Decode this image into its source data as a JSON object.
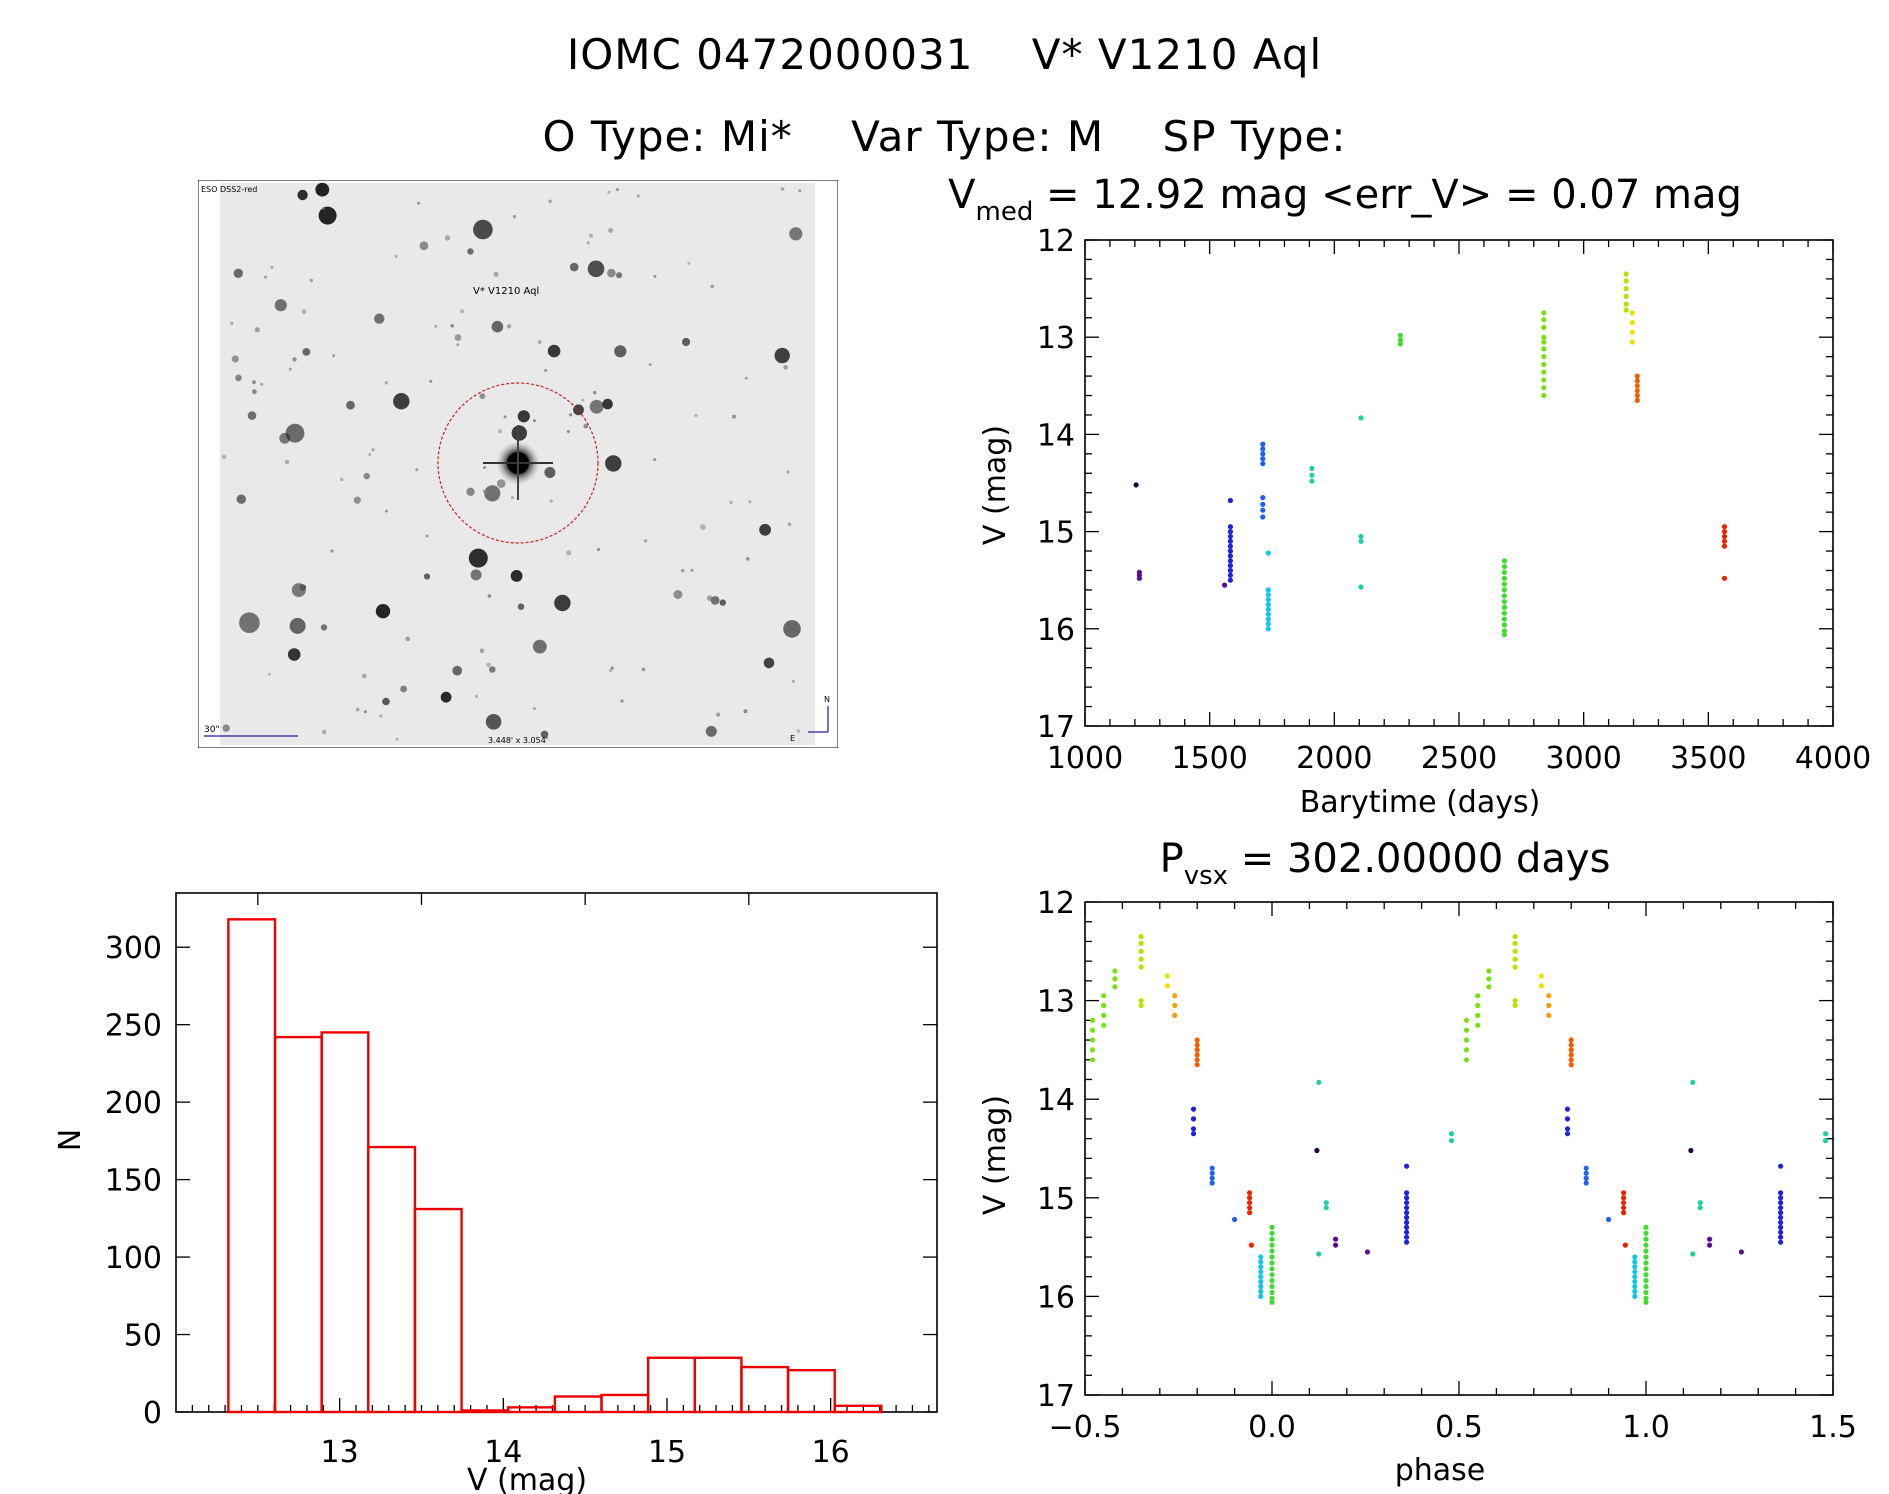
{
  "header": {
    "id_label": "IOMC 0472000031",
    "name_label": "V* V1210 Aql",
    "otype": "O Type: Mi*",
    "vartype": "Var Type: M",
    "sptype": "SP Type:"
  },
  "image": {
    "survey_label": "ESO DSS2-red",
    "target_label": "V* V1210 Aql",
    "scale_label": "30\"",
    "fov_label": "3.448' x 3.054'",
    "north_label": "N",
    "east_label": "E"
  },
  "colors": {
    "histogram": "#ee0000",
    "circle": "#cc2222",
    "overlay_text": "#1a1a99",
    "season_palette": [
      "#220033",
      "#5a0f8f",
      "#2020dd",
      "#2060ee",
      "#10c8e8",
      "#20d0a0",
      "#40dd30",
      "#7ae010",
      "#b4e400",
      "#f0e000",
      "#f0a000",
      "#f06000",
      "#ee2200"
    ]
  },
  "chart_data": [
    {
      "id": "light_curve",
      "type": "scatter",
      "title": "V_med = 12.92 mag <err_V> = 0.07 mag",
      "title_parts": {
        "main": "V",
        "sub": "med",
        "rest": " = 12.92 mag <err_V> = 0.07 mag"
      },
      "xlabel": "Barytime (days)",
      "ylabel": "V (mag)",
      "xlim": [
        1000,
        4000
      ],
      "ylim": [
        17,
        12
      ],
      "y_inverted": true,
      "xticks": [
        1000,
        1500,
        2000,
        2500,
        3000,
        3500,
        4000
      ],
      "yticks": [
        12,
        13,
        14,
        15,
        16,
        17
      ],
      "groups": [
        {
          "x": 1205,
          "y": [
            14.52
          ],
          "color": 0
        },
        {
          "x": 1218,
          "y": [
            15.42,
            15.45,
            15.48
          ],
          "color": 1
        },
        {
          "x": 1560,
          "y": [
            15.55
          ],
          "color": 1
        },
        {
          "x": 1583,
          "y": [
            14.95,
            15.0,
            15.05,
            15.1,
            15.15,
            15.2,
            15.25,
            15.3,
            15.35,
            15.4,
            15.45,
            15.5,
            14.68
          ],
          "color": 2
        },
        {
          "x": 1713,
          "y": [
            14.1,
            14.15,
            14.2,
            14.25,
            14.3,
            14.65,
            14.72,
            14.78,
            14.85
          ],
          "color": 3
        },
        {
          "x": 1735,
          "y": [
            15.22,
            15.6,
            15.65,
            15.7,
            15.75,
            15.8,
            15.85,
            15.9,
            15.95,
            16.0
          ],
          "color": 4
        },
        {
          "x": 1910,
          "y": [
            14.35,
            14.42,
            14.48
          ],
          "color": 5
        },
        {
          "x": 2107,
          "y": [
            13.83,
            15.05,
            15.1,
            15.57
          ],
          "color": 5
        },
        {
          "x": 2265,
          "y": [
            12.98,
            13.03,
            13.07
          ],
          "color": 6
        },
        {
          "x": 2682,
          "y": [
            15.3,
            15.36,
            15.42,
            15.48,
            15.54,
            15.6,
            15.66,
            15.72,
            15.78,
            15.84,
            15.9,
            15.96,
            16.02,
            16.06
          ],
          "color": 6
        },
        {
          "x": 2840,
          "y": [
            12.75,
            12.82,
            12.9,
            13.0,
            13.05,
            13.12,
            13.2,
            13.28,
            13.36,
            13.44,
            13.52,
            13.6
          ],
          "color": 7
        },
        {
          "x": 3170,
          "y": [
            12.35,
            12.42,
            12.5,
            12.58,
            12.66,
            12.72
          ],
          "color": 8
        },
        {
          "x": 3195,
          "y": [
            12.75,
            12.85,
            12.95,
            13.05
          ],
          "color": 9
        },
        {
          "x": 3215,
          "y": [
            13.4,
            13.45,
            13.5,
            13.55,
            13.6,
            13.65
          ],
          "color": 11
        },
        {
          "x": 3565,
          "y": [
            14.95,
            15.0,
            15.05,
            15.1,
            15.15,
            15.48
          ],
          "color": 12
        }
      ]
    },
    {
      "id": "histogram",
      "type": "bar",
      "xlabel": "V (mag)",
      "ylabel": "N",
      "xlim": [
        12.0,
        16.65
      ],
      "ylim": [
        0,
        335
      ],
      "xticks": [
        13,
        14,
        15,
        16
      ],
      "yticks": [
        0,
        50,
        100,
        150,
        200,
        250,
        300
      ],
      "bin_edges": [
        12.32,
        12.605,
        12.89,
        13.175,
        13.46,
        13.745,
        14.03,
        14.315,
        14.6,
        14.885,
        15.17,
        15.455,
        15.74,
        16.025,
        16.31
      ],
      "values": [
        318,
        242,
        245,
        171,
        131,
        1,
        3,
        10,
        11,
        35,
        35,
        29,
        27,
        4
      ]
    },
    {
      "id": "phase_curve",
      "type": "scatter",
      "title": "P_vsx = 302.00000 days",
      "title_parts": {
        "main": "P",
        "sub": "vsx",
        "rest": " = 302.00000 days"
      },
      "xlabel": "phase",
      "ylabel": "V (mag)",
      "xlim": [
        -0.5,
        1.5
      ],
      "ylim": [
        17,
        12
      ],
      "y_inverted": true,
      "xticks": [
        -0.5,
        0.0,
        0.5,
        1.0,
        1.5
      ],
      "xtick_labels": [
        "−0.5",
        "0.0",
        "0.5",
        "1.0",
        "1.5"
      ],
      "yticks": [
        12,
        13,
        14,
        15,
        16,
        17
      ],
      "repeat_offset": 1.0,
      "groups": [
        {
          "x": -0.48,
          "y": [
            13.2,
            13.3,
            13.4,
            13.5,
            13.6
          ],
          "color": 7
        },
        {
          "x": -0.45,
          "y": [
            12.95,
            13.05,
            13.15,
            13.25
          ],
          "color": 7
        },
        {
          "x": -0.42,
          "y": [
            12.7,
            12.78,
            12.86
          ],
          "color": 7
        },
        {
          "x": -0.35,
          "y": [
            12.35,
            12.42,
            12.5,
            12.58,
            12.66,
            13.0,
            13.05
          ],
          "color": 8
        },
        {
          "x": -0.28,
          "y": [
            12.75,
            12.85
          ],
          "color": 9
        },
        {
          "x": -0.26,
          "y": [
            12.95,
            13.05,
            13.15
          ],
          "color": 10
        },
        {
          "x": -0.2,
          "y": [
            13.4,
            13.45,
            13.5,
            13.55,
            13.6,
            13.65
          ],
          "color": 11
        },
        {
          "x": -0.21,
          "y": [
            14.1,
            14.2,
            14.3,
            14.35
          ],
          "color": 2
        },
        {
          "x": -0.16,
          "y": [
            14.7,
            14.75,
            14.8,
            14.85
          ],
          "color": 3
        },
        {
          "x": -0.1,
          "y": [
            15.22
          ],
          "color": 3
        },
        {
          "x": -0.06,
          "y": [
            14.95,
            15.0,
            15.05,
            15.1,
            15.15
          ],
          "color": 12
        },
        {
          "x": -0.055,
          "y": [
            15.48
          ],
          "color": 12
        },
        {
          "x": -0.03,
          "y": [
            15.6,
            15.65,
            15.7,
            15.75,
            15.8,
            15.85,
            15.9,
            15.95,
            16.0
          ],
          "color": 4
        },
        {
          "x": 0.0,
          "y": [
            15.3,
            15.36,
            15.42,
            15.48,
            15.54,
            15.6,
            15.66,
            15.72,
            15.78,
            15.84,
            15.9,
            15.96,
            16.02,
            16.06
          ],
          "color": 6
        },
        {
          "x": 0.12,
          "y": [
            14.52
          ],
          "color": 0
        },
        {
          "x": 0.125,
          "y": [
            13.83,
            15.57
          ],
          "color": 5
        },
        {
          "x": 0.145,
          "y": [
            15.05,
            15.1
          ],
          "color": 5
        },
        {
          "x": 0.17,
          "y": [
            15.42,
            15.48
          ],
          "color": 1
        },
        {
          "x": 0.255,
          "y": [
            15.55
          ],
          "color": 1
        },
        {
          "x": 0.36,
          "y": [
            14.95,
            15.0,
            15.05,
            15.1,
            15.15,
            15.2,
            15.25,
            15.3,
            15.35,
            15.4,
            15.45,
            14.68
          ],
          "color": 2
        },
        {
          "x": 0.48,
          "y": [
            14.35,
            14.42
          ],
          "color": 5
        }
      ]
    }
  ]
}
